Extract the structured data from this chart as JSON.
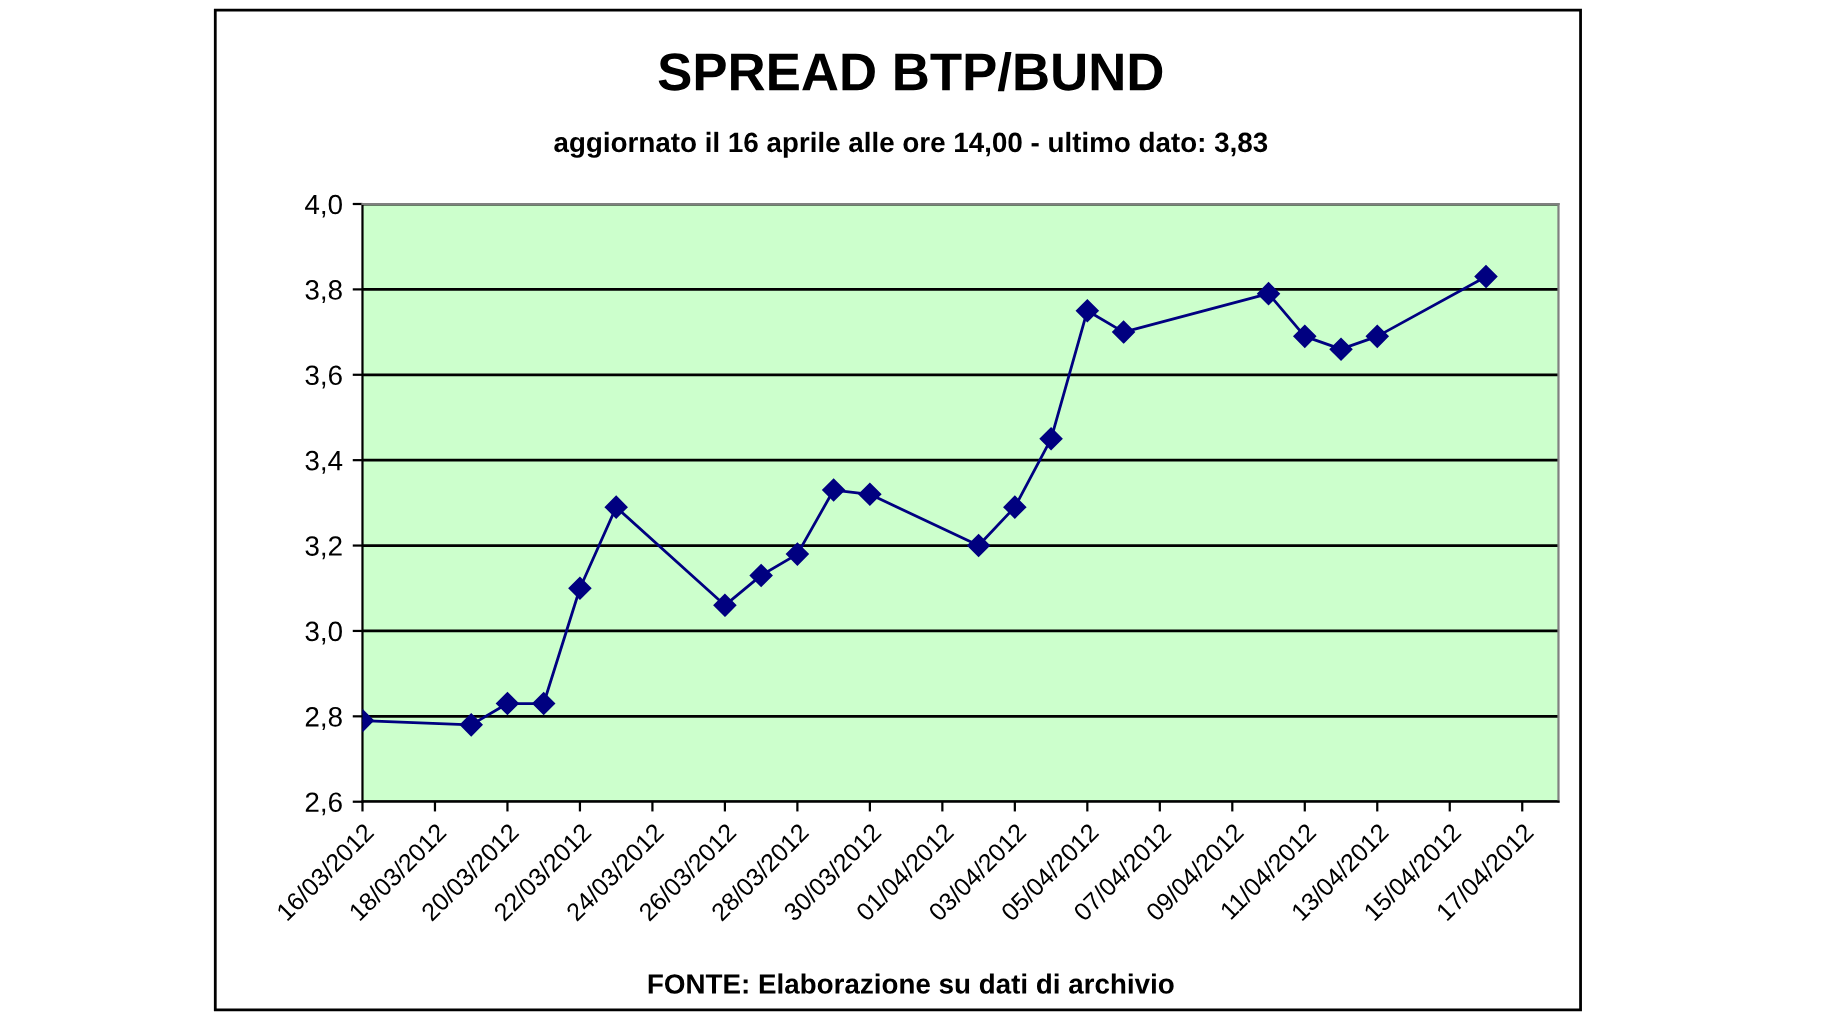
{
  "chart_data": {
    "type": "line",
    "title": "SPREAD BTP/BUND",
    "subtitle": "aggiornato il 16 aprile alle ore 14,00 - ultimo dato: 3,83",
    "annotations": [
      "FONTE: Elaborazione su dati di archivio"
    ],
    "x": [
      "2012-03-16",
      "2012-03-19",
      "2012-03-20",
      "2012-03-21",
      "2012-03-22",
      "2012-03-23",
      "2012-03-26",
      "2012-03-27",
      "2012-03-28",
      "2012-03-29",
      "2012-03-30",
      "2012-04-02",
      "2012-04-03",
      "2012-04-04",
      "2012-04-05",
      "2012-04-06",
      "2012-04-10",
      "2012-04-11",
      "2012-04-12",
      "2012-04-13",
      "2012-04-16"
    ],
    "series": [
      {
        "color": "#000080",
        "values": [
          2.79,
          2.78,
          2.83,
          2.83,
          3.1,
          3.29,
          3.06,
          3.13,
          3.18,
          3.33,
          3.32,
          3.2,
          3.29,
          3.45,
          3.75,
          3.7,
          3.79,
          3.69,
          3.66,
          3.69,
          3.83
        ]
      }
    ],
    "xlim": [
      "2012-03-16",
      "2012-04-18"
    ],
    "xticks": [
      {
        "value": "2012-03-16",
        "label": "16/03/2012"
      },
      {
        "value": "2012-03-18",
        "label": "18/03/2012"
      },
      {
        "value": "2012-03-20",
        "label": "20/03/2012"
      },
      {
        "value": "2012-03-22",
        "label": "22/03/2012"
      },
      {
        "value": "2012-03-24",
        "label": "24/03/2012"
      },
      {
        "value": "2012-03-26",
        "label": "26/03/2012"
      },
      {
        "value": "2012-03-28",
        "label": "28/03/2012"
      },
      {
        "value": "2012-03-30",
        "label": "30/03/2012"
      },
      {
        "value": "2012-04-01",
        "label": "01/04/2012"
      },
      {
        "value": "2012-04-03",
        "label": "03/04/2012"
      },
      {
        "value": "2012-04-05",
        "label": "05/04/2012"
      },
      {
        "value": "2012-04-07",
        "label": "07/04/2012"
      },
      {
        "value": "2012-04-09",
        "label": "09/04/2012"
      },
      {
        "value": "2012-04-11",
        "label": "11/04/2012"
      },
      {
        "value": "2012-04-13",
        "label": "13/04/2012"
      },
      {
        "value": "2012-04-15",
        "label": "15/04/2012"
      },
      {
        "value": "2012-04-17",
        "label": "17/04/2012"
      }
    ],
    "ylim": [
      2.6,
      4.0
    ],
    "yticks": [
      {
        "value": 2.6,
        "label": "2,6"
      },
      {
        "value": 2.8,
        "label": "2,8"
      },
      {
        "value": 3.0,
        "label": "3,0"
      },
      {
        "value": 3.2,
        "label": "3,2"
      },
      {
        "value": 3.4,
        "label": "3,4"
      },
      {
        "value": 3.6,
        "label": "3,6"
      },
      {
        "value": 3.8,
        "label": "3,8"
      },
      {
        "value": 4.0,
        "label": "4,0"
      }
    ],
    "grid": "y",
    "marker": "diamond",
    "line_style": "solid"
  }
}
